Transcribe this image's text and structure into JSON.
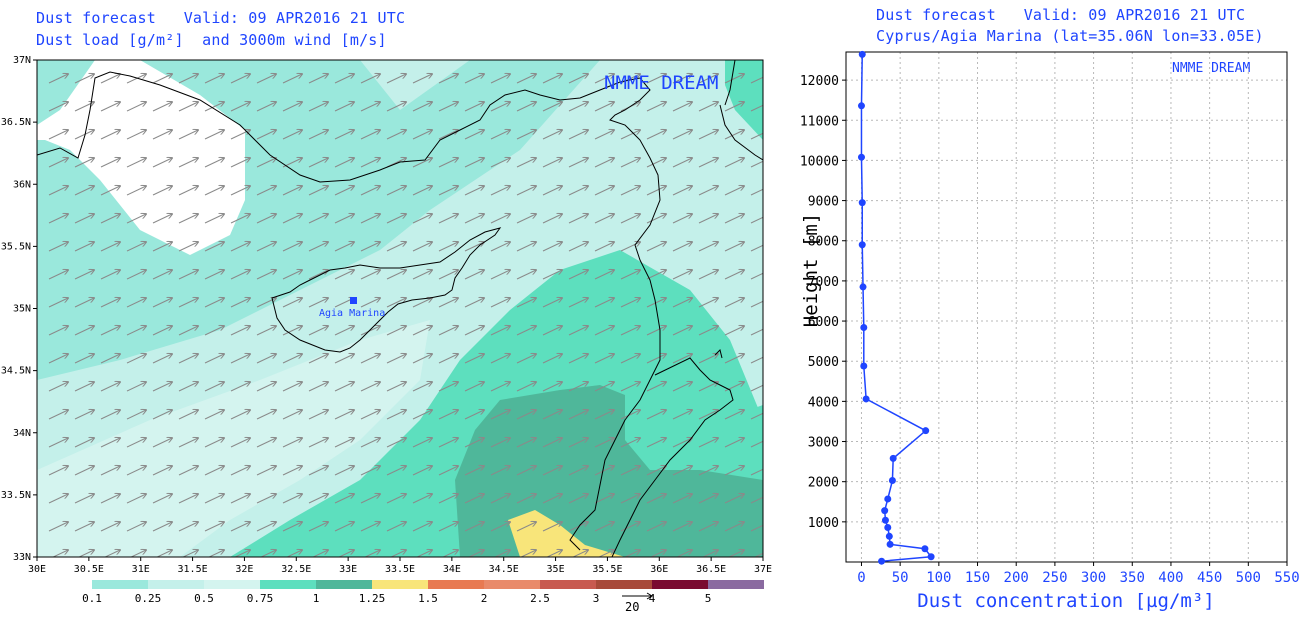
{
  "map": {
    "header_line1": "Dust forecast   Valid: 09 APR2016 21 UTC",
    "header_line2": "Dust load [g/m²]  and 3000m wind [m/s]",
    "watermark": "NMME DREAM",
    "site_label": "Agia Marina",
    "x_ticks": [
      "30E",
      "30.5E",
      "31E",
      "31.5E",
      "32E",
      "32.5E",
      "33E",
      "33.5E",
      "34E",
      "34.5E",
      "35E",
      "35.5E",
      "36E",
      "36.5E",
      "37E"
    ],
    "y_ticks": [
      "37N",
      "36.5N",
      "36N",
      "35.5N",
      "35N",
      "34.5N",
      "34N",
      "33.5N",
      "33N"
    ],
    "colorbar": {
      "colors": [
        "#9ae8dc",
        "#c4f0ea",
        "#d4f4ef",
        "#5ddfbe",
        "#4fb79a",
        "#f8e57a",
        "#e87a52",
        "#e98a6a",
        "#c85a50",
        "#a84a3a",
        "#7a0a30",
        "#8a6aa0"
      ],
      "labels": [
        "0.1",
        "0.25",
        "0.5",
        "0.75",
        "1",
        "1.25",
        "1.5",
        "2",
        "2.5",
        "3",
        "4",
        "5"
      ]
    },
    "wind_key_value": "20",
    "colors": {
      "header": "#1f45ff",
      "arrows": "#8a8a8a",
      "light": "#c4f0ea",
      "lighter": "#9ae8dc",
      "mid": "#5ddfbe",
      "dark": "#4fb79a",
      "yellow": "#f8e57a"
    }
  },
  "profile": {
    "header_line1": "Dust forecast   Valid: 09 APR2016 21 UTC",
    "header_line2": "Cyprus/Agia Marina (lat=35.06N lon=33.05E)",
    "watermark": "NMME DREAM",
    "xlabel": "Dust concentration [µg/m³]",
    "ylabel": "Height [m]",
    "x_ticks": [
      "0",
      "50",
      "100",
      "150",
      "200",
      "250",
      "300",
      "350",
      "400",
      "450",
      "500",
      "550"
    ],
    "y_ticks": [
      "1000",
      "2000",
      "3000",
      "4000",
      "5000",
      "6000",
      "7000",
      "8000",
      "9000",
      "10000",
      "11000",
      "12000"
    ]
  },
  "chart_data": [
    {
      "type": "heatmap",
      "title": "Dust load [g/m²]  and 3000m wind [m/s]",
      "xlim": [
        30,
        37
      ],
      "ylim": [
        33,
        37
      ],
      "legend": "bottom colorbar",
      "bins": [
        "0.1",
        "0.25",
        "0.5",
        "0.75",
        "1",
        "1.25",
        "1.5",
        "2",
        "2.5",
        "3",
        "4",
        "5"
      ]
    },
    {
      "type": "line",
      "title": "Cyprus/Agia Marina (lat=35.06N lon=33.05E)",
      "xlabel": "Dust concentration [µg/m³]",
      "ylabel": "Height [m]",
      "xlim": [
        -20,
        550
      ],
      "ylim": [
        0,
        12700
      ],
      "grid": true,
      "series": [
        {
          "x": [
            26,
            90,
            82,
            37,
            36,
            34,
            31,
            30,
            34,
            40,
            41,
            83,
            6,
            3,
            3,
            2,
            1,
            1,
            0,
            0,
            1,
            1
          ],
          "y": [
            20,
            130,
            330,
            440,
            640,
            860,
            1040,
            1280,
            1570,
            2030,
            2580,
            3270,
            4060,
            4880,
            5840,
            6850,
            7900,
            8950,
            10080,
            11360,
            12640,
            12700
          ]
        }
      ]
    }
  ]
}
